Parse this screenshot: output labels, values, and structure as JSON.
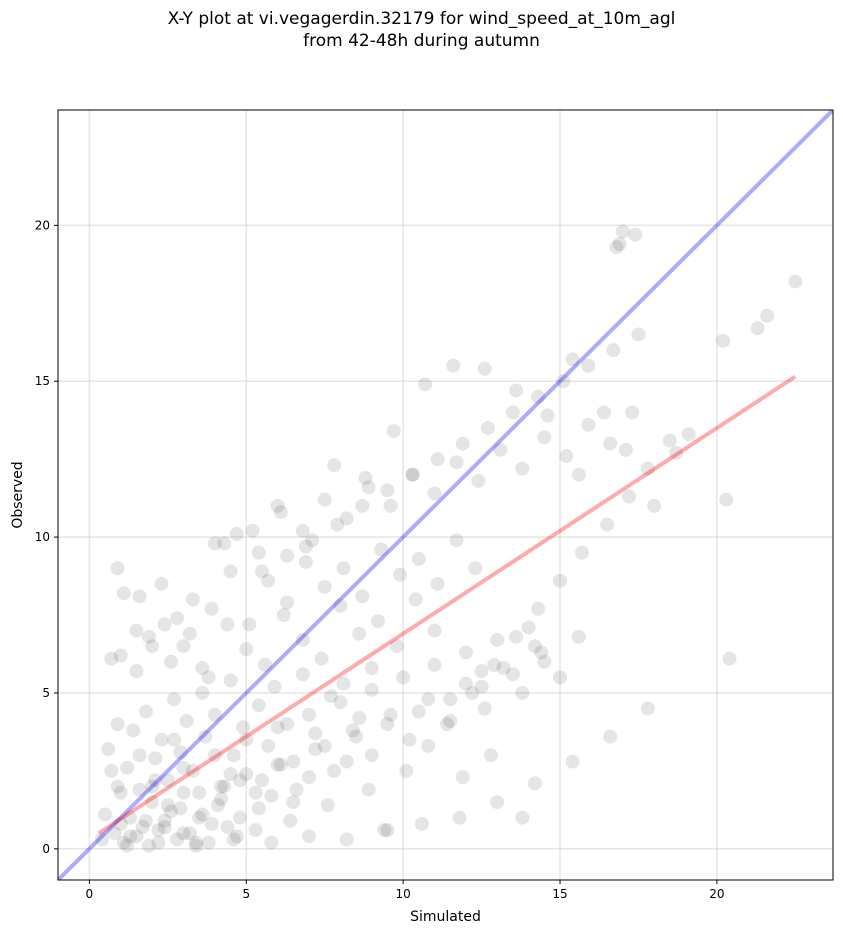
{
  "title_line1": "X-Y plot at vi.vegagerdin.32179 for wind_speed_at_10m_agl",
  "title_line2": "from 42-48h during autumn",
  "chart_data": {
    "type": "scatter",
    "title": "X-Y plot at vi.vegagerdin.32179 for wind_speed_at_10m_agl\nfrom 42-48h during autumn",
    "xlabel": "Simulated",
    "ylabel": "Observed",
    "xlim": [
      -1.0,
      23.7
    ],
    "ylim": [
      -1.0,
      23.7
    ],
    "x_ticks": [
      0,
      5,
      10,
      15,
      20
    ],
    "y_ticks": [
      0,
      5,
      10,
      15,
      20
    ],
    "grid": true,
    "legend": "none",
    "point_color": "#000000",
    "point_alpha": 0.1,
    "identity_line": {
      "color": "#0000ff",
      "alpha": 0.33,
      "x": [
        -1.0,
        23.7
      ],
      "y": [
        -1.0,
        23.7
      ]
    },
    "fit_line": {
      "color": "#ff0000",
      "alpha": 0.33,
      "x": [
        0.3,
        22.5
      ],
      "y": [
        0.5,
        15.15
      ]
    },
    "points": {
      "x": [
        0.4,
        0.8,
        1.0,
        1.1,
        1.3,
        1.5,
        1.7,
        1.9,
        2.0,
        2.2,
        2.4,
        2.6,
        2.8,
        3.0,
        3.2,
        3.5,
        3.8,
        4.1,
        4.4,
        4.7,
        0.9,
        1.2,
        1.6,
        2.1,
        2.5,
        2.9,
        3.3,
        3.7,
        4.2,
        4.6,
        5.0,
        5.3,
        5.7,
        6.1,
        6.5,
        0.6,
        0.9,
        1.4,
        1.8,
        2.3,
        2.7,
        3.1,
        3.6,
        4.0,
        4.5,
        4.9,
        5.4,
        5.9,
        6.3,
        6.8,
        7.2,
        7.7,
        8.1,
        8.6,
        9.0,
        1.0,
        1.5,
        2.0,
        2.6,
        3.2,
        3.8,
        4.4,
        5.0,
        5.6,
        6.2,
        6.8,
        7.4,
        8.0,
        8.6,
        9.2,
        9.8,
        10.4,
        11.0,
        0.7,
        1.1,
        1.5,
        1.9,
        2.3,
        2.8,
        3.3,
        3.9,
        4.5,
        5.1,
        5.7,
        6.3,
        6.9,
        7.5,
        8.1,
        8.7,
        9.3,
        9.9,
        10.5,
        11.1,
        11.7,
        12.3,
        2.0,
        2.5,
        3.0,
        3.5,
        4.0,
        4.5,
        5.0,
        5.5,
        6.0,
        6.5,
        7.0,
        7.5,
        8.0,
        8.5,
        9.0,
        9.5,
        10.0,
        10.5,
        11.0,
        11.5,
        12.0,
        12.5,
        13.0,
        13.5,
        14.0,
        14.5,
        3.0,
        3.6,
        4.2,
        4.8,
        5.4,
        6.0,
        6.6,
        7.2,
        7.8,
        8.4,
        9.0,
        9.6,
        10.2,
        10.8,
        11.4,
        12.0,
        12.6,
        13.2,
        13.8,
        14.4,
        15.0,
        15.6,
        4.0,
        4.7,
        5.4,
        6.1,
        6.8,
        7.5,
        8.2,
        8.9,
        9.6,
        10.3,
        11.0,
        11.7,
        12.4,
        13.1,
        13.8,
        14.5,
        15.2,
        15.9,
        16.6,
        17.3,
        5.5,
        6.3,
        7.1,
        7.9,
        8.7,
        9.5,
        10.3,
        11.1,
        11.9,
        12.7,
        13.5,
        14.3,
        15.1,
        15.9,
        16.7,
        17.5,
        1.2,
        2.2,
        3.4,
        4.6,
        5.8,
        7.0,
        8.2,
        9.4,
        10.6,
        11.8,
        13.0,
        14.2,
        15.4,
        16.6,
        17.8,
        0.9,
        1.6,
        2.4,
        3.0,
        3.6,
        4.3,
        5.2,
        6.0,
        6.9,
        7.8,
        8.8,
        9.7,
        10.7,
        11.6,
        12.6,
        13.6,
        14.6,
        15.6,
        16.4,
        17.1,
        18.0,
        18.7,
        19.1,
        20.2,
        20.3,
        20.4,
        21.3,
        21.6,
        22.5,
        0.5,
        0.7,
        1.0,
        1.3,
        1.6,
        1.8,
        2.1,
        2.4,
        2.7,
        2.9,
        3.4,
        3.9,
        4.3,
        4.8,
        5.3,
        5.8,
        6.4,
        7.0,
        7.6,
        8.2,
        8.9,
        9.5,
        10.1,
        10.8,
        11.5,
        12.2,
        12.9,
        13.6,
        14.3,
        15.0,
        15.7,
        16.5,
        17.2,
        17.8,
        18.5,
        16.8,
        17.4,
        17.0,
        16.9,
        15.4,
        12.5,
        12.8,
        11.9,
        13.8,
        14.2
      ],
      "y": [
        0.3,
        0.5,
        0.8,
        0.2,
        1.0,
        0.4,
        0.7,
        0.1,
        1.5,
        0.6,
        0.9,
        1.2,
        0.3,
        1.8,
        0.5,
        1.0,
        0.2,
        1.4,
        0.7,
        0.4,
        2.0,
        2.6,
        1.9,
        2.9,
        2.2,
        3.1,
        2.5,
        3.6,
        2.0,
        3.0,
        2.4,
        1.8,
        3.3,
        2.7,
        1.5,
        3.2,
        4.0,
        3.8,
        4.4,
        3.5,
        4.8,
        4.1,
        5.0,
        4.3,
        5.4,
        3.9,
        4.6,
        5.2,
        4.0,
        5.6,
        3.7,
        4.9,
        5.3,
        4.2,
        5.8,
        6.2,
        5.7,
        6.5,
        6.0,
        6.9,
        5.5,
        7.2,
        6.4,
        5.9,
        7.5,
        6.7,
        6.1,
        7.8,
        6.9,
        7.3,
        6.5,
        8.0,
        7.0,
        6.1,
        8.2,
        7.0,
        6.8,
        8.5,
        7.4,
        8.0,
        7.7,
        8.9,
        7.2,
        8.6,
        7.9,
        9.2,
        8.4,
        9.0,
        8.1,
        9.6,
        8.8,
        9.3,
        8.5,
        9.9,
        9.0,
        2.0,
        1.4,
        2.6,
        1.8,
        3.0,
        2.4,
        3.5,
        2.2,
        3.9,
        2.8,
        4.3,
        3.3,
        4.7,
        3.6,
        5.1,
        4.0,
        5.5,
        4.4,
        5.9,
        4.8,
        6.3,
        5.2,
        6.7,
        5.6,
        7.1,
        6.0,
        0.5,
        1.1,
        1.6,
        2.2,
        1.3,
        2.7,
        1.9,
        3.2,
        2.5,
        3.8,
        3.0,
        4.3,
        3.5,
        4.8,
        4.0,
        5.3,
        4.5,
        5.8,
        5.0,
        6.3,
        5.5,
        6.8,
        9.8,
        10.1,
        9.5,
        10.8,
        10.2,
        11.2,
        10.6,
        11.6,
        11.0,
        12.0,
        11.4,
        12.4,
        11.8,
        12.8,
        12.2,
        13.2,
        12.6,
        13.6,
        13.0,
        14.0,
        8.9,
        9.4,
        9.9,
        10.4,
        11.0,
        11.5,
        12.0,
        12.5,
        13.0,
        13.5,
        14.0,
        14.5,
        15.0,
        15.5,
        16.0,
        16.5,
        0.1,
        0.2,
        0.1,
        0.3,
        0.2,
        0.4,
        0.3,
        0.6,
        0.8,
        1.0,
        1.5,
        2.1,
        2.8,
        3.6,
        4.5,
        9.0,
        8.1,
        7.2,
        6.5,
        5.8,
        9.8,
        10.2,
        11.0,
        9.7,
        12.3,
        11.9,
        13.4,
        14.9,
        15.5,
        15.4,
        14.7,
        13.9,
        12.0,
        14.0,
        12.8,
        11.0,
        12.7,
        13.3,
        16.3,
        11.2,
        6.1,
        16.7,
        17.1,
        18.2,
        1.1,
        2.5,
        1.8,
        0.4,
        3.0,
        0.9,
        2.2,
        0.7,
        3.5,
        1.3,
        0.2,
        0.8,
        2.0,
        1.0,
        0.6,
        1.7,
        0.9,
        2.3,
        1.4,
        2.8,
        1.9,
        0.6,
        2.5,
        3.3,
        4.1,
        5.0,
        5.9,
        6.8,
        7.7,
        8.6,
        9.5,
        10.4,
        11.3,
        12.2,
        13.1,
        19.3,
        19.7,
        19.8,
        19.4,
        15.7,
        5.7,
        3.0,
        2.3,
        1.0,
        6.5
      ]
    }
  }
}
